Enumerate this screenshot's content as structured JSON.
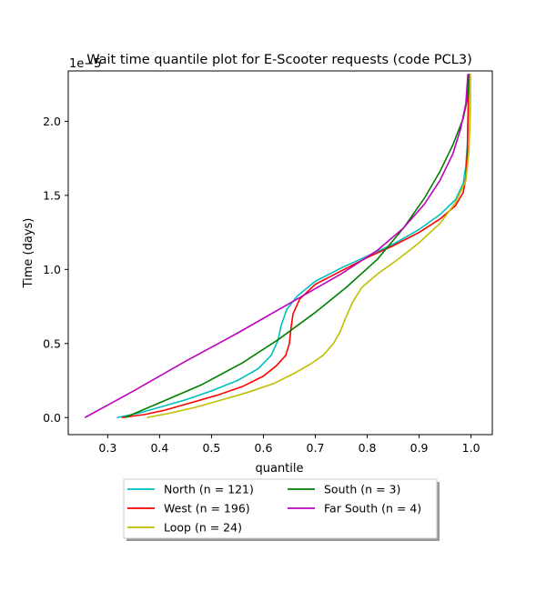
{
  "chart_data": {
    "type": "line",
    "title": "Wait time quantile plot for E-Scooter  requests (code PCL3)",
    "xlabel": "quantile",
    "ylabel": "Time (days)",
    "y_offset_label": "1e−5",
    "xlim": [
      0.224,
      1.041
    ],
    "ylim": [
      -0.115,
      2.34
    ],
    "xticks": [
      0.3,
      0.4,
      0.5,
      0.6,
      0.7,
      0.8,
      0.9,
      1.0
    ],
    "xtick_labels": [
      "0.3",
      "0.4",
      "0.5",
      "0.6",
      "0.7",
      "0.8",
      "0.9",
      "1.0"
    ],
    "yticks": [
      0.0,
      0.5,
      1.0,
      1.5,
      2.0
    ],
    "ytick_labels": [
      "0.0",
      "0.5",
      "1.0",
      "1.5",
      "2.0"
    ],
    "grid": false,
    "legend_position": "below",
    "series": [
      {
        "name": "North (n = 121)",
        "color": "#00bfbf",
        "points": [
          [
            0.318,
            0.0
          ],
          [
            0.36,
            0.03
          ],
          [
            0.4,
            0.07
          ],
          [
            0.45,
            0.12
          ],
          [
            0.5,
            0.18
          ],
          [
            0.55,
            0.25
          ],
          [
            0.59,
            0.33
          ],
          [
            0.615,
            0.42
          ],
          [
            0.628,
            0.52
          ],
          [
            0.634,
            0.62
          ],
          [
            0.645,
            0.73
          ],
          [
            0.665,
            0.82
          ],
          [
            0.7,
            0.92
          ],
          [
            0.75,
            1.01
          ],
          [
            0.8,
            1.09
          ],
          [
            0.85,
            1.17
          ],
          [
            0.9,
            1.27
          ],
          [
            0.94,
            1.37
          ],
          [
            0.97,
            1.47
          ],
          [
            0.985,
            1.58
          ],
          [
            0.99,
            1.7
          ],
          [
            0.993,
            1.85
          ],
          [
            0.994,
            2.0
          ],
          [
            0.995,
            2.15
          ],
          [
            0.996,
            2.32
          ]
        ]
      },
      {
        "name": "West (n = 196)",
        "color": "#ff0000",
        "points": [
          [
            0.327,
            0.0
          ],
          [
            0.37,
            0.02
          ],
          [
            0.41,
            0.05
          ],
          [
            0.46,
            0.1
          ],
          [
            0.51,
            0.15
          ],
          [
            0.56,
            0.21
          ],
          [
            0.6,
            0.28
          ],
          [
            0.625,
            0.35
          ],
          [
            0.643,
            0.42
          ],
          [
            0.65,
            0.5
          ],
          [
            0.653,
            0.6
          ],
          [
            0.657,
            0.7
          ],
          [
            0.67,
            0.8
          ],
          [
            0.7,
            0.9
          ],
          [
            0.75,
            0.99
          ],
          [
            0.8,
            1.08
          ],
          [
            0.85,
            1.16
          ],
          [
            0.9,
            1.25
          ],
          [
            0.94,
            1.34
          ],
          [
            0.97,
            1.43
          ],
          [
            0.985,
            1.52
          ],
          [
            0.99,
            1.62
          ],
          [
            0.993,
            1.8
          ],
          [
            0.994,
            2.0
          ],
          [
            0.995,
            2.15
          ],
          [
            0.996,
            2.32
          ]
        ]
      },
      {
        "name": "Loop (n = 24)",
        "color": "#bfbf00",
        "points": [
          [
            0.375,
            0.0
          ],
          [
            0.42,
            0.03
          ],
          [
            0.47,
            0.07
          ],
          [
            0.52,
            0.12
          ],
          [
            0.57,
            0.17
          ],
          [
            0.62,
            0.23
          ],
          [
            0.66,
            0.3
          ],
          [
            0.69,
            0.36
          ],
          [
            0.715,
            0.42
          ],
          [
            0.735,
            0.5
          ],
          [
            0.748,
            0.58
          ],
          [
            0.758,
            0.67
          ],
          [
            0.772,
            0.78
          ],
          [
            0.79,
            0.88
          ],
          [
            0.82,
            0.97
          ],
          [
            0.86,
            1.07
          ],
          [
            0.9,
            1.18
          ],
          [
            0.94,
            1.31
          ],
          [
            0.97,
            1.45
          ],
          [
            0.99,
            1.6
          ],
          [
            0.996,
            1.8
          ],
          [
            0.998,
            2.0
          ],
          [
            0.999,
            2.15
          ],
          [
            0.999,
            2.32
          ]
        ]
      },
      {
        "name": "South (n = 3)",
        "color": "#008000",
        "points": [
          [
            0.333,
            0.0
          ],
          [
            0.4,
            0.1
          ],
          [
            0.48,
            0.22
          ],
          [
            0.56,
            0.37
          ],
          [
            0.63,
            0.53
          ],
          [
            0.7,
            0.71
          ],
          [
            0.76,
            0.88
          ],
          [
            0.82,
            1.07
          ],
          [
            0.87,
            1.28
          ],
          [
            0.91,
            1.48
          ],
          [
            0.94,
            1.66
          ],
          [
            0.965,
            1.84
          ],
          [
            0.985,
            2.02
          ],
          [
            0.993,
            2.15
          ],
          [
            0.996,
            2.32
          ]
        ]
      },
      {
        "name": "Far South (n = 4)",
        "color": "#bf00bf",
        "points": [
          [
            0.256,
            0.0
          ],
          [
            0.35,
            0.18
          ],
          [
            0.45,
            0.38
          ],
          [
            0.55,
            0.57
          ],
          [
            0.65,
            0.77
          ],
          [
            0.75,
            0.97
          ],
          [
            0.82,
            1.13
          ],
          [
            0.87,
            1.28
          ],
          [
            0.91,
            1.44
          ],
          [
            0.94,
            1.6
          ],
          [
            0.965,
            1.78
          ],
          [
            0.98,
            1.95
          ],
          [
            0.99,
            2.12
          ],
          [
            0.994,
            2.32
          ]
        ]
      }
    ]
  }
}
